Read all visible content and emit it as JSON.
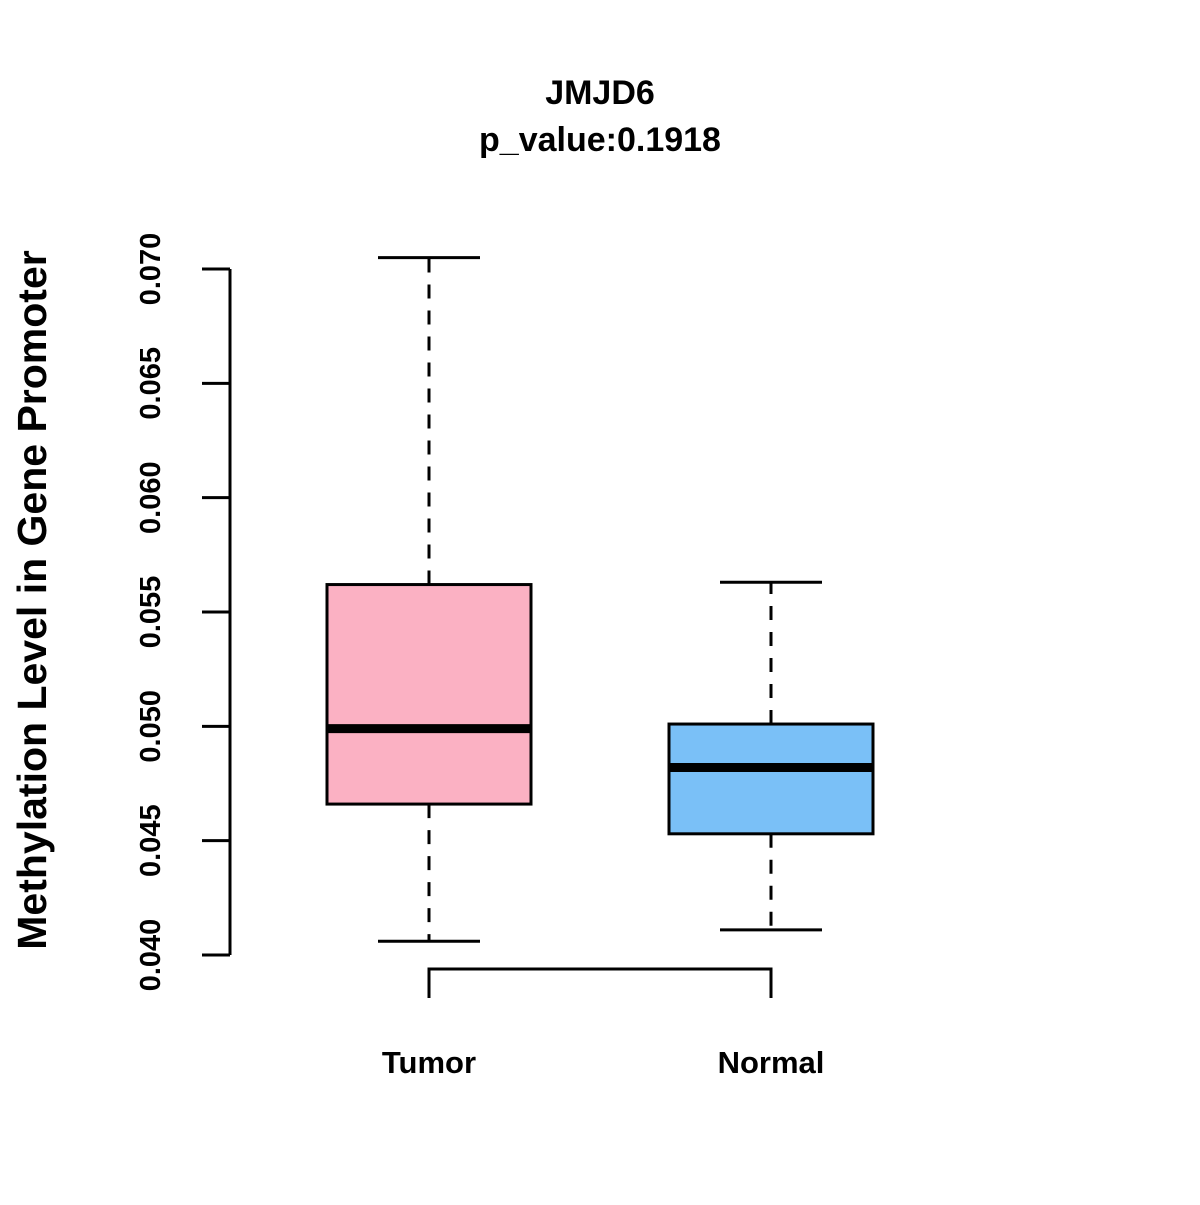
{
  "chart_data": {
    "type": "box",
    "title": "JMJD6",
    "subtitle": "p_value:0.1918",
    "xlabel": "",
    "ylabel": "Methylation Level in Gene Promoter",
    "ylim": [
      0.04,
      0.07
    ],
    "yticks": [
      "0.040",
      "0.045",
      "0.050",
      "0.055",
      "0.060",
      "0.065",
      "0.070"
    ],
    "categories": [
      "Tumor",
      "Normal"
    ],
    "boxes": [
      {
        "name": "Tumor",
        "min": 0.0406,
        "q1": 0.0466,
        "median": 0.0499,
        "q3": 0.0562,
        "max": 0.0705,
        "color": "#FBB1C3"
      },
      {
        "name": "Normal",
        "min": 0.0411,
        "q1": 0.0453,
        "median": 0.0482,
        "q3": 0.0501,
        "max": 0.0563,
        "color": "#7AC0F7"
      }
    ],
    "comparison_bracket": true
  }
}
